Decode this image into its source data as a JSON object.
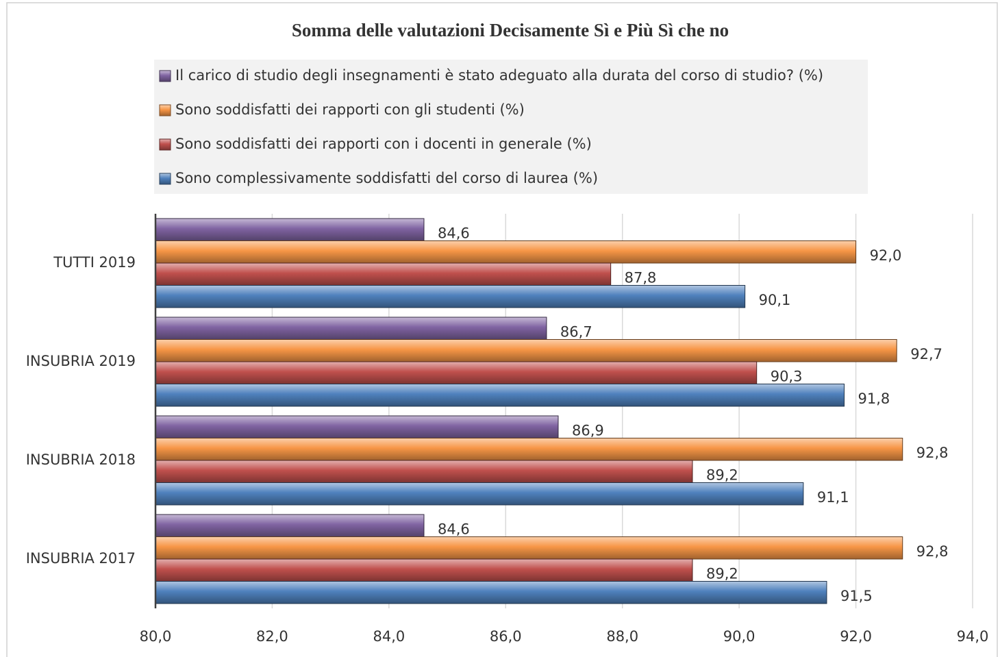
{
  "chart_data": {
    "type": "hbar",
    "title": "Somma delle valutazioni Decisamente Sì e Più Sì che no",
    "categories": [
      "TUTTI 2019",
      "INSUBRIA 2019",
      "INSUBRIA 2018",
      "INSUBRIA 2017"
    ],
    "series": [
      {
        "name": "Il carico di studio degli insegnamenti è stato adeguato alla durata del corso di studio? (%)",
        "color": "#8064a2",
        "values": [
          84.6,
          86.7,
          86.9,
          84.6
        ],
        "value_labels": [
          "84,6",
          "86,7",
          "86,9",
          "84,6"
        ]
      },
      {
        "name": "Sono soddisfatti dei rapporti con gli studenti (%)",
        "color": "#f79646",
        "values": [
          92.0,
          92.7,
          92.8,
          92.8
        ],
        "value_labels": [
          "92,0",
          "92,7",
          "92,8",
          "92,8"
        ]
      },
      {
        "name": "Sono soddisfatti dei rapporti con i docenti in generale (%)",
        "color": "#c0504d",
        "values": [
          87.8,
          90.3,
          89.2,
          89.2
        ],
        "value_labels": [
          "87,8",
          "90,3",
          "89,2",
          "89,2"
        ]
      },
      {
        "name": "Sono complessivamente soddisfatti del corso di laurea (%)",
        "color": "#4f81bd",
        "values": [
          90.1,
          91.8,
          91.1,
          91.5
        ],
        "value_labels": [
          "90,1",
          "91,8",
          "91,1",
          "91,5"
        ]
      }
    ],
    "xlim": [
      80,
      94
    ],
    "xticks": [
      {
        "value": 80,
        "label": "80,0"
      },
      {
        "value": 82,
        "label": "82,0"
      },
      {
        "value": 84,
        "label": "84,0"
      },
      {
        "value": 86,
        "label": "86,0"
      },
      {
        "value": 88,
        "label": "88,0"
      },
      {
        "value": 90,
        "label": "90,0"
      },
      {
        "value": 92,
        "label": "92,0"
      },
      {
        "value": 94,
        "label": "94,0"
      }
    ],
    "grid": true
  }
}
